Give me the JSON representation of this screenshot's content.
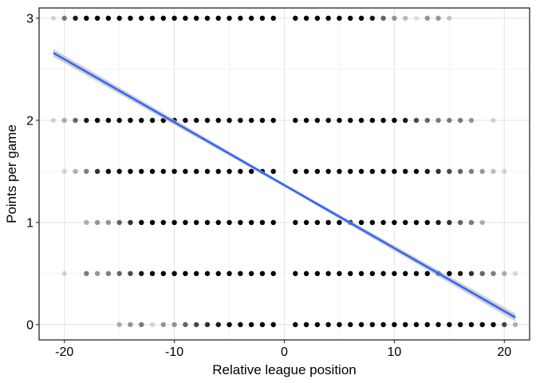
{
  "chart_data": {
    "type": "scatter",
    "title": "",
    "xlabel": "Relative league position",
    "ylabel": "Points per game",
    "xlim": [
      -22.3,
      22.3
    ],
    "ylim": [
      -0.15,
      3.1
    ],
    "xticks": [
      -20,
      -10,
      0,
      10,
      20
    ],
    "xtick_labels": [
      "-20",
      "-10",
      "0",
      "10",
      "20"
    ],
    "yticks": [
      0,
      1,
      2,
      3
    ],
    "ytick_labels": [
      "0",
      "1",
      "2",
      "3"
    ],
    "grid": true,
    "legend": "none",
    "point_color": "#000000",
    "point_levels": [
      {
        "y": 3,
        "points": [
          {
            "x": -21,
            "alpha": 0.15
          },
          {
            "x": -20,
            "alpha": 0.5
          },
          {
            "x": -19,
            "alpha": 0.9
          },
          {
            "x": -18,
            "alpha": 1
          },
          {
            "x": -17,
            "alpha": 1
          },
          {
            "x": -16,
            "alpha": 1
          },
          {
            "x": -15,
            "alpha": 1
          },
          {
            "x": -14,
            "alpha": 1
          },
          {
            "x": -13,
            "alpha": 1
          },
          {
            "x": -12,
            "alpha": 1
          },
          {
            "x": -11,
            "alpha": 1
          },
          {
            "x": -10,
            "alpha": 1
          },
          {
            "x": -9,
            "alpha": 1
          },
          {
            "x": -8,
            "alpha": 1
          },
          {
            "x": -7,
            "alpha": 1
          },
          {
            "x": -6,
            "alpha": 1
          },
          {
            "x": -5,
            "alpha": 1
          },
          {
            "x": -4,
            "alpha": 1
          },
          {
            "x": -3,
            "alpha": 1
          },
          {
            "x": -2,
            "alpha": 1
          },
          {
            "x": -1,
            "alpha": 1
          },
          {
            "x": 1,
            "alpha": 1
          },
          {
            "x": 2,
            "alpha": 1
          },
          {
            "x": 3,
            "alpha": 1
          },
          {
            "x": 4,
            "alpha": 1
          },
          {
            "x": 5,
            "alpha": 1
          },
          {
            "x": 6,
            "alpha": 1
          },
          {
            "x": 7,
            "alpha": 1
          },
          {
            "x": 8,
            "alpha": 0.9
          },
          {
            "x": 9,
            "alpha": 0.6
          },
          {
            "x": 10,
            "alpha": 0.4
          },
          {
            "x": 11,
            "alpha": 0.25
          },
          {
            "x": 12,
            "alpha": 0.1
          },
          {
            "x": 13,
            "alpha": 0.4
          },
          {
            "x": 14,
            "alpha": 0.4
          },
          {
            "x": 15,
            "alpha": 0.2
          }
        ]
      },
      {
        "y": 2,
        "points": [
          {
            "x": -21,
            "alpha": 0.15
          },
          {
            "x": -20,
            "alpha": 0.3
          },
          {
            "x": -19,
            "alpha": 0.6
          },
          {
            "x": -18,
            "alpha": 0.9
          },
          {
            "x": -17,
            "alpha": 1
          },
          {
            "x": -16,
            "alpha": 1
          },
          {
            "x": -15,
            "alpha": 1
          },
          {
            "x": -14,
            "alpha": 1
          },
          {
            "x": -13,
            "alpha": 1
          },
          {
            "x": -12,
            "alpha": 1
          },
          {
            "x": -11,
            "alpha": 1
          },
          {
            "x": -10,
            "alpha": 1
          },
          {
            "x": -9,
            "alpha": 1
          },
          {
            "x": -8,
            "alpha": 1
          },
          {
            "x": -7,
            "alpha": 1
          },
          {
            "x": -6,
            "alpha": 1
          },
          {
            "x": -5,
            "alpha": 1
          },
          {
            "x": -4,
            "alpha": 1
          },
          {
            "x": -3,
            "alpha": 1
          },
          {
            "x": -2,
            "alpha": 1
          },
          {
            "x": -1,
            "alpha": 1
          },
          {
            "x": 1,
            "alpha": 1
          },
          {
            "x": 2,
            "alpha": 1
          },
          {
            "x": 3,
            "alpha": 1
          },
          {
            "x": 4,
            "alpha": 1
          },
          {
            "x": 5,
            "alpha": 1
          },
          {
            "x": 6,
            "alpha": 1
          },
          {
            "x": 7,
            "alpha": 1
          },
          {
            "x": 8,
            "alpha": 1
          },
          {
            "x": 9,
            "alpha": 1
          },
          {
            "x": 10,
            "alpha": 1
          },
          {
            "x": 11,
            "alpha": 0.9
          },
          {
            "x": 12,
            "alpha": 0.7
          },
          {
            "x": 13,
            "alpha": 0.6
          },
          {
            "x": 14,
            "alpha": 0.5
          },
          {
            "x": 15,
            "alpha": 0.5
          },
          {
            "x": 16,
            "alpha": 0.5
          },
          {
            "x": 17,
            "alpha": 0.4
          },
          {
            "x": 19,
            "alpha": 0.15
          }
        ]
      },
      {
        "y": 1.5,
        "points": [
          {
            "x": -20,
            "alpha": 0.15
          },
          {
            "x": -19,
            "alpha": 0.3
          },
          {
            "x": -18,
            "alpha": 0.5
          },
          {
            "x": -17,
            "alpha": 0.8
          },
          {
            "x": -16,
            "alpha": 1
          },
          {
            "x": -15,
            "alpha": 1
          },
          {
            "x": -14,
            "alpha": 1
          },
          {
            "x": -13,
            "alpha": 1
          },
          {
            "x": -12,
            "alpha": 1
          },
          {
            "x": -11,
            "alpha": 1
          },
          {
            "x": -10,
            "alpha": 1
          },
          {
            "x": -9,
            "alpha": 1
          },
          {
            "x": -8,
            "alpha": 1
          },
          {
            "x": -7,
            "alpha": 1
          },
          {
            "x": -6,
            "alpha": 1
          },
          {
            "x": -5,
            "alpha": 1
          },
          {
            "x": -4,
            "alpha": 1
          },
          {
            "x": -3,
            "alpha": 1
          },
          {
            "x": -2,
            "alpha": 1
          },
          {
            "x": -1,
            "alpha": 1
          },
          {
            "x": 1,
            "alpha": 1
          },
          {
            "x": 2,
            "alpha": 1
          },
          {
            "x": 3,
            "alpha": 1
          },
          {
            "x": 4,
            "alpha": 1
          },
          {
            "x": 5,
            "alpha": 1
          },
          {
            "x": 6,
            "alpha": 1
          },
          {
            "x": 7,
            "alpha": 1
          },
          {
            "x": 8,
            "alpha": 1
          },
          {
            "x": 9,
            "alpha": 1
          },
          {
            "x": 10,
            "alpha": 1
          },
          {
            "x": 11,
            "alpha": 1
          },
          {
            "x": 12,
            "alpha": 1
          },
          {
            "x": 13,
            "alpha": 0.9
          },
          {
            "x": 14,
            "alpha": 0.8
          },
          {
            "x": 15,
            "alpha": 0.7
          },
          {
            "x": 16,
            "alpha": 0.6
          },
          {
            "x": 17,
            "alpha": 0.5
          },
          {
            "x": 18,
            "alpha": 0.4
          },
          {
            "x": 19,
            "alpha": 0.25
          },
          {
            "x": 20,
            "alpha": 0.15
          }
        ]
      },
      {
        "y": 1,
        "points": [
          {
            "x": -18,
            "alpha": 0.3
          },
          {
            "x": -17,
            "alpha": 0.4
          },
          {
            "x": -16,
            "alpha": 0.4
          },
          {
            "x": -15,
            "alpha": 0.6
          },
          {
            "x": -14,
            "alpha": 0.8
          },
          {
            "x": -13,
            "alpha": 1
          },
          {
            "x": -12,
            "alpha": 1
          },
          {
            "x": -11,
            "alpha": 1
          },
          {
            "x": -10,
            "alpha": 1
          },
          {
            "x": -9,
            "alpha": 1
          },
          {
            "x": -8,
            "alpha": 1
          },
          {
            "x": -7,
            "alpha": 1
          },
          {
            "x": -6,
            "alpha": 1
          },
          {
            "x": -5,
            "alpha": 1
          },
          {
            "x": -4,
            "alpha": 1
          },
          {
            "x": -3,
            "alpha": 1
          },
          {
            "x": -2,
            "alpha": 1
          },
          {
            "x": -1,
            "alpha": 1
          },
          {
            "x": 1,
            "alpha": 1
          },
          {
            "x": 2,
            "alpha": 1
          },
          {
            "x": 3,
            "alpha": 1
          },
          {
            "x": 4,
            "alpha": 1
          },
          {
            "x": 5,
            "alpha": 1
          },
          {
            "x": 6,
            "alpha": 1
          },
          {
            "x": 7,
            "alpha": 1
          },
          {
            "x": 8,
            "alpha": 1
          },
          {
            "x": 9,
            "alpha": 1
          },
          {
            "x": 10,
            "alpha": 1
          },
          {
            "x": 11,
            "alpha": 1
          },
          {
            "x": 12,
            "alpha": 1
          },
          {
            "x": 13,
            "alpha": 1
          },
          {
            "x": 14,
            "alpha": 0.9
          },
          {
            "x": 15,
            "alpha": 0.8
          },
          {
            "x": 16,
            "alpha": 0.6
          },
          {
            "x": 17,
            "alpha": 0.5
          },
          {
            "x": 18,
            "alpha": 0.3
          }
        ]
      },
      {
        "y": 0.5,
        "points": [
          {
            "x": -20,
            "alpha": 0.15
          },
          {
            "x": -18,
            "alpha": 0.5
          },
          {
            "x": -17,
            "alpha": 0.4
          },
          {
            "x": -16,
            "alpha": 0.5
          },
          {
            "x": -15,
            "alpha": 0.6
          },
          {
            "x": -14,
            "alpha": 0.7
          },
          {
            "x": -13,
            "alpha": 0.9
          },
          {
            "x": -12,
            "alpha": 1
          },
          {
            "x": -11,
            "alpha": 1
          },
          {
            "x": -10,
            "alpha": 1
          },
          {
            "x": -9,
            "alpha": 1
          },
          {
            "x": -8,
            "alpha": 1
          },
          {
            "x": -7,
            "alpha": 1
          },
          {
            "x": -6,
            "alpha": 1
          },
          {
            "x": -5,
            "alpha": 1
          },
          {
            "x": -4,
            "alpha": 1
          },
          {
            "x": -3,
            "alpha": 1
          },
          {
            "x": -2,
            "alpha": 1
          },
          {
            "x": -1,
            "alpha": 1
          },
          {
            "x": 1,
            "alpha": 1
          },
          {
            "x": 2,
            "alpha": 1
          },
          {
            "x": 3,
            "alpha": 1
          },
          {
            "x": 4,
            "alpha": 1
          },
          {
            "x": 5,
            "alpha": 1
          },
          {
            "x": 6,
            "alpha": 1
          },
          {
            "x": 7,
            "alpha": 1
          },
          {
            "x": 8,
            "alpha": 1
          },
          {
            "x": 9,
            "alpha": 1
          },
          {
            "x": 10,
            "alpha": 1
          },
          {
            "x": 11,
            "alpha": 1
          },
          {
            "x": 12,
            "alpha": 1
          },
          {
            "x": 13,
            "alpha": 1
          },
          {
            "x": 14,
            "alpha": 1
          },
          {
            "x": 15,
            "alpha": 1
          },
          {
            "x": 16,
            "alpha": 0.9
          },
          {
            "x": 17,
            "alpha": 0.8
          },
          {
            "x": 18,
            "alpha": 0.6
          },
          {
            "x": 19,
            "alpha": 0.5
          },
          {
            "x": 20,
            "alpha": 0.3
          },
          {
            "x": 21,
            "alpha": 0.15
          }
        ]
      },
      {
        "y": 0,
        "points": [
          {
            "x": -15,
            "alpha": 0.3
          },
          {
            "x": -14,
            "alpha": 0.4
          },
          {
            "x": -13,
            "alpha": 0.5
          },
          {
            "x": -12,
            "alpha": 0.15
          },
          {
            "x": -11,
            "alpha": 0.4
          },
          {
            "x": -10,
            "alpha": 0.4
          },
          {
            "x": -9,
            "alpha": 0.6
          },
          {
            "x": -8,
            "alpha": 0.7
          },
          {
            "x": -7,
            "alpha": 0.8
          },
          {
            "x": -6,
            "alpha": 0.9
          },
          {
            "x": -5,
            "alpha": 1
          },
          {
            "x": -4,
            "alpha": 1
          },
          {
            "x": -3,
            "alpha": 1
          },
          {
            "x": -2,
            "alpha": 1
          },
          {
            "x": -1,
            "alpha": 1
          },
          {
            "x": 1,
            "alpha": 1
          },
          {
            "x": 2,
            "alpha": 1
          },
          {
            "x": 3,
            "alpha": 1
          },
          {
            "x": 4,
            "alpha": 1
          },
          {
            "x": 5,
            "alpha": 1
          },
          {
            "x": 6,
            "alpha": 1
          },
          {
            "x": 7,
            "alpha": 1
          },
          {
            "x": 8,
            "alpha": 1
          },
          {
            "x": 9,
            "alpha": 1
          },
          {
            "x": 10,
            "alpha": 1
          },
          {
            "x": 11,
            "alpha": 1
          },
          {
            "x": 12,
            "alpha": 1
          },
          {
            "x": 13,
            "alpha": 1
          },
          {
            "x": 14,
            "alpha": 1
          },
          {
            "x": 15,
            "alpha": 1
          },
          {
            "x": 16,
            "alpha": 1
          },
          {
            "x": 17,
            "alpha": 1
          },
          {
            "x": 18,
            "alpha": 1
          },
          {
            "x": 19,
            "alpha": 1
          },
          {
            "x": 20,
            "alpha": 0.7
          },
          {
            "x": 21,
            "alpha": 0.3
          }
        ]
      }
    ],
    "trend_line": {
      "method": "linear",
      "x": [
        -21,
        21
      ],
      "y": [
        2.66,
        0.07
      ],
      "color": "#3366FF",
      "band_color": "#bdbdbd"
    }
  }
}
